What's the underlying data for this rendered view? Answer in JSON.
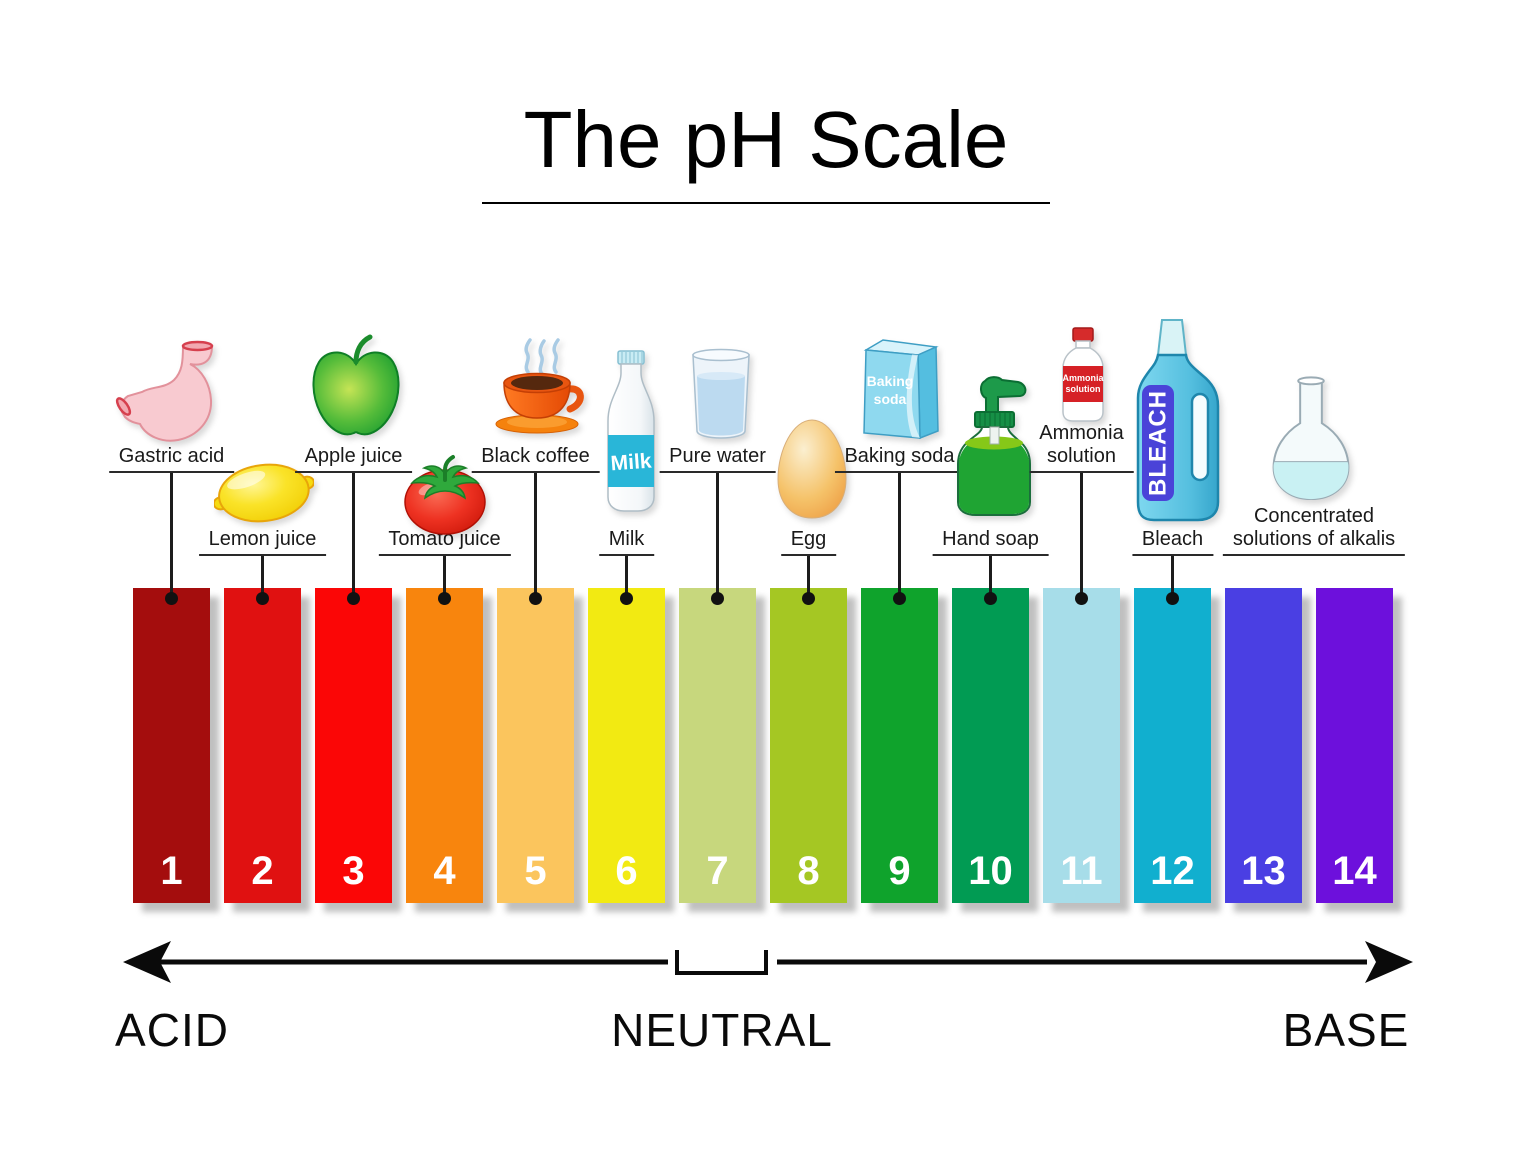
{
  "title": "The pH Scale",
  "scale": {
    "items": [
      {
        "ph": "1",
        "substance": "Gastric acid",
        "color": "#A40D0D",
        "icon": "stomach-icon"
      },
      {
        "ph": "2",
        "substance": "Lemon juice",
        "color": "#E01111",
        "icon": "lemon-icon"
      },
      {
        "ph": "3",
        "substance": "Apple juice",
        "color": "#FB0606",
        "icon": "apple-icon"
      },
      {
        "ph": "4",
        "substance": "Tomato juice",
        "color": "#F8850D",
        "icon": "tomato-icon"
      },
      {
        "ph": "5",
        "substance": "Black coffee",
        "color": "#FBC55D",
        "icon": "coffee-cup-icon"
      },
      {
        "ph": "6",
        "substance": "Milk",
        "color": "#F2EA12",
        "icon": "milk-bottle-icon"
      },
      {
        "ph": "7",
        "substance": "Pure water",
        "color": "#C7D77D",
        "icon": "water-glass-icon"
      },
      {
        "ph": "8",
        "substance": "Egg",
        "color": "#A5C723",
        "icon": "egg-icon"
      },
      {
        "ph": "9",
        "substance": "Baking soda",
        "color": "#0FA32C",
        "icon": "baking-soda-box-icon"
      },
      {
        "ph": "10",
        "substance": "Hand soap",
        "color": "#019B53",
        "icon": "soap-dispenser-icon"
      },
      {
        "ph": "11",
        "substance": "Ammonia\nsolution",
        "color": "#A7DDE9",
        "icon": "ammonia-bottle-icon"
      },
      {
        "ph": "12",
        "substance": "Bleach",
        "color": "#11AFCF",
        "icon": "bleach-bottle-icon"
      },
      {
        "ph": "13",
        "substance": "",
        "color": "#4A3FE3",
        "icon": ""
      },
      {
        "ph": "14",
        "substance": "Concentrated\nsolutions of alkalis",
        "color": "#6D10DC",
        "icon": "flask-icon"
      }
    ]
  },
  "axis": {
    "acid": "ACID",
    "neutral": "NEUTRAL",
    "base": "BASE"
  },
  "icon_texts": {
    "milk": "Milk",
    "baking_line1": "Baking",
    "baking_line2": "soda",
    "ammonia_line1": "Ammonia",
    "ammonia_line2": "solution",
    "bleach": "BLEACH"
  }
}
